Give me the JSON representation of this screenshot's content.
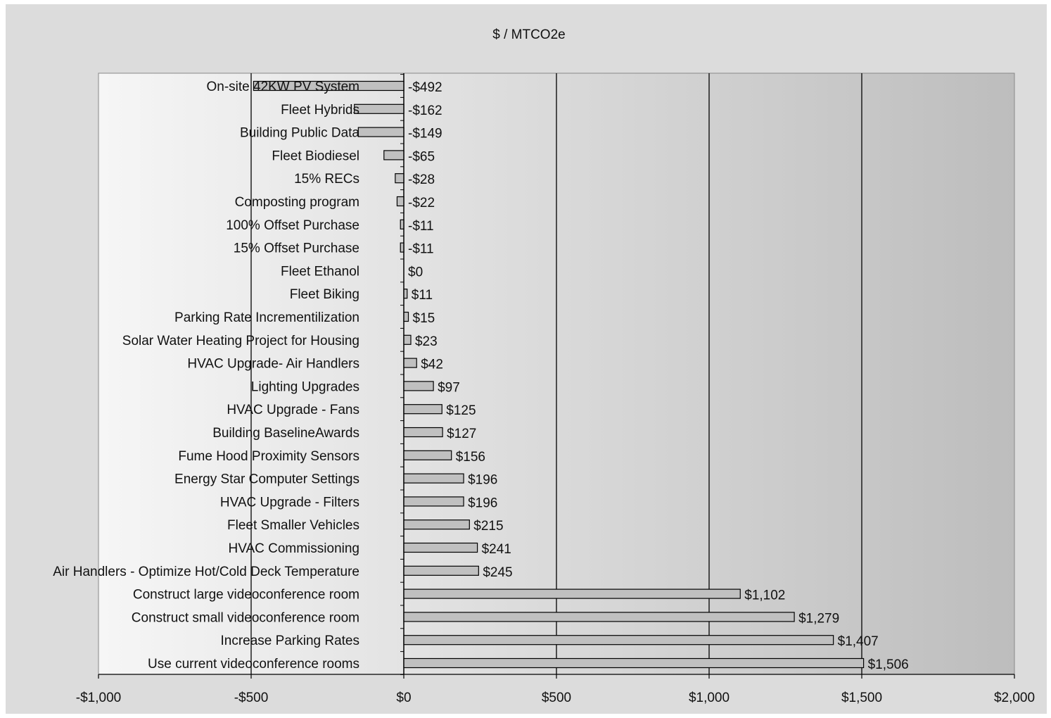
{
  "chart_data": {
    "type": "bar",
    "orientation": "horizontal",
    "title": "$ / MTCO2e",
    "xlim": [
      -1000,
      2000
    ],
    "xticks": [
      -1000,
      -500,
      0,
      500,
      1000,
      1500,
      2000
    ],
    "xtick_labels": [
      "-$1,000",
      "-$500",
      "$0",
      "$500",
      "$1,000",
      "$1,500",
      "$2,000"
    ],
    "gridlines": "vertical",
    "legend": "none",
    "colors": {
      "bar_fill": "#c0c0c0",
      "bar_stroke": "#000000",
      "gridline": "#000000"
    },
    "categories": [
      "On-site 42KW PV System",
      "Fleet Hybrids",
      "Building Public Data",
      "Fleet Biodiesel",
      "15% RECs",
      "Composting program",
      "100% Offset Purchase",
      "15% Offset Purchase",
      "Fleet Ethanol",
      "Fleet Biking",
      "Parking Rate Incrementilization",
      "Solar Water Heating Project for Housing",
      "HVAC Upgrade- Air Handlers",
      "Lighting Upgrades",
      "HVAC Upgrade - Fans",
      "Building BaselineAwards",
      "Fume Hood Proximity Sensors",
      "Energy Star Computer Settings",
      "HVAC Upgrade - Filters",
      "Fleet Smaller Vehicles",
      "HVAC Commissioning",
      "Air Handlers - Optimize Hot/Cold Deck Temperature",
      "Construct large videoconference room",
      "Construct small videoconference room",
      "Increase Parking Rates",
      "Use current videoconference rooms"
    ],
    "values": [
      -492,
      -162,
      -149,
      -65,
      -28,
      -22,
      -11,
      -11,
      0,
      11,
      15,
      23,
      42,
      97,
      125,
      127,
      156,
      196,
      196,
      215,
      241,
      245,
      1102,
      1279,
      1407,
      1506
    ],
    "value_labels": [
      "-$492",
      "-$162",
      "-$149",
      "-$65",
      "-$28",
      "-$22",
      "-$11",
      "-$11",
      "$0",
      "$11",
      "$15",
      "$23",
      "$42",
      "$97",
      "$125",
      "$127",
      "$156",
      "$196",
      "$196",
      "$215",
      "$241",
      "$245",
      "$1,102",
      "$1,279",
      "$1,407",
      "$1,506"
    ]
  }
}
